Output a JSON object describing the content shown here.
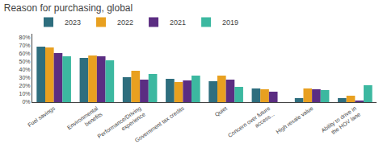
{
  "chart_data": {
    "type": "bar",
    "title": "Reason for purchasing, global",
    "categories": [
      "Fuel savings",
      "Environmental\nbenefits",
      "Performance/Driving\nexperience",
      "Government tax credits",
      "Quiet",
      "Concern over future\naccess...",
      "High resale value",
      "Ability to drive in\nthe HOV lane"
    ],
    "series": [
      {
        "name": "2023",
        "color": "#2E6E7E",
        "values": [
          69,
          55,
          31,
          29,
          26,
          17,
          5,
          5
        ]
      },
      {
        "name": "2022",
        "color": "#E8A020",
        "values": [
          68,
          58,
          39,
          25,
          33,
          16,
          17,
          8
        ]
      },
      {
        "name": "2021",
        "color": "#5B2D82",
        "values": [
          61,
          57,
          28,
          27,
          28,
          13,
          16,
          2
        ]
      },
      {
        "name": "2019",
        "color": "#3CB8A0",
        "values": [
          57,
          52,
          35,
          33,
          19,
          0,
          15,
          21
        ]
      }
    ],
    "ylim": [
      0,
      85
    ],
    "yticks": [
      {
        "value": 0,
        "label": "0%"
      },
      {
        "value": 10,
        "label": "10%"
      },
      {
        "value": 20,
        "label": "20%"
      },
      {
        "value": 30,
        "label": "30%"
      },
      {
        "value": 40,
        "label": "40%"
      },
      {
        "value": 50,
        "label": "50%"
      },
      {
        "value": 60,
        "label": "60%"
      },
      {
        "value": 70,
        "label": "70%"
      },
      {
        "value": 80,
        "label": "80%"
      }
    ],
    "grid": false,
    "legend": "top"
  }
}
